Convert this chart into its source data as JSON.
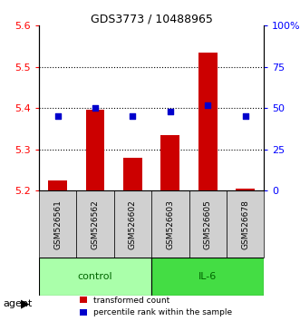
{
  "title": "GDS3773 / 10488965",
  "samples": [
    "GSM526561",
    "GSM526562",
    "GSM526602",
    "GSM526603",
    "GSM526605",
    "GSM526678"
  ],
  "groups": [
    "control",
    "control",
    "control",
    "IL-6",
    "IL-6",
    "IL-6"
  ],
  "transformed_counts": [
    5.225,
    5.395,
    5.28,
    5.335,
    5.535,
    5.205
  ],
  "percentile_ranks": [
    45,
    50,
    45,
    48,
    52,
    45
  ],
  "ylim_left": [
    5.2,
    5.6
  ],
  "ylim_right": [
    0,
    100
  ],
  "yticks_left": [
    5.2,
    5.3,
    5.4,
    5.5,
    5.6
  ],
  "yticks_right": [
    0,
    25,
    50,
    75,
    100
  ],
  "ytick_labels_left": [
    "5.2",
    "5.3",
    "5.4",
    "5.5",
    "5.6"
  ],
  "ytick_labels_right": [
    "0",
    "25",
    "50",
    "75",
    "100%"
  ],
  "grid_values": [
    5.3,
    5.4,
    5.5
  ],
  "bar_color": "#cc0000",
  "dot_color": "#0000cc",
  "control_color": "#aaffaa",
  "il6_color": "#00cc00",
  "group_label_color_control": "#006600",
  "group_label_color_il6": "#006600",
  "agent_label": "agent",
  "legend_items": [
    "transformed count",
    "percentile rank within the sample"
  ],
  "control_samples": [
    "GSM526561",
    "GSM526562",
    "GSM526602"
  ],
  "il6_samples": [
    "GSM526603",
    "GSM526605",
    "GSM526678"
  ]
}
